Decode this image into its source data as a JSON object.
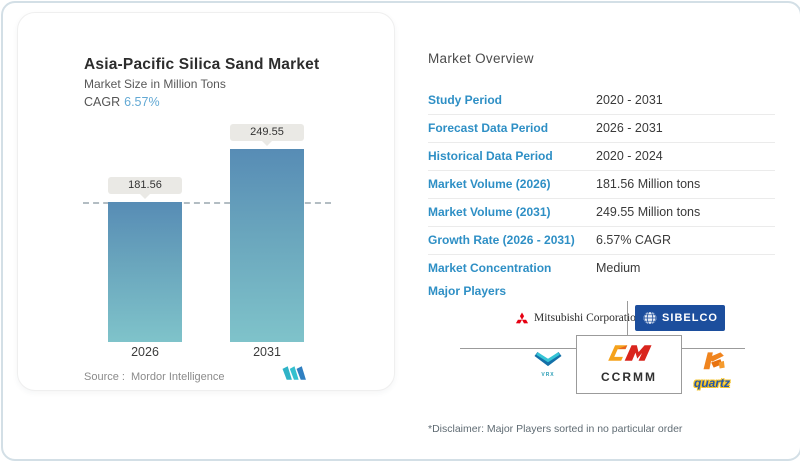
{
  "left_card": {
    "title": "Asia-Pacific Silica Sand Market",
    "subtitle": "Market Size in Million Tons",
    "cagr_label": "CAGR",
    "cagr_value": "6.57%",
    "source_label": "Source :",
    "source_value": "Mordor Intelligence"
  },
  "chart_data": {
    "type": "bar",
    "title": "Asia-Pacific Silica Sand Market",
    "subtitle": "Market Size in Million Tons",
    "cagr": "6.57%",
    "categories": [
      "2026",
      "2031"
    ],
    "values": [
      181.56,
      249.55
    ],
    "unit": "Million Tons",
    "data_labels": [
      "181.56",
      "249.55"
    ],
    "reference_line": {
      "value": 181.56,
      "style": "dashed"
    },
    "legend": "none",
    "grid": "off"
  },
  "overview": {
    "title": "Market Overview",
    "rows": [
      {
        "label": "Study Period",
        "value": "2020 - 2031"
      },
      {
        "label": "Forecast Data Period",
        "value": "2026 - 2031"
      },
      {
        "label": "Historical Data Period",
        "value": "2020 - 2024"
      },
      {
        "label": "Market Volume (2026)",
        "value": "181.56 Million tons"
      },
      {
        "label": "Market Volume (2031)",
        "value": "249.55 Million tons"
      },
      {
        "label": "Growth Rate (2026 - 2031)",
        "value": "6.57% CAGR"
      },
      {
        "label": "Market Concentration",
        "value": "Medium"
      }
    ]
  },
  "major_players": {
    "label": "Major Players",
    "players": [
      {
        "name": "Mitsubishi Corporation"
      },
      {
        "name": "SIBELCO"
      },
      {
        "name": "VRX"
      },
      {
        "name": "CCRMM"
      },
      {
        "name": "quartz"
      }
    ]
  },
  "disclaimer": "*Disclaimer: Major Players sorted in no particular order",
  "colors": {
    "accent_label_blue": "#2e8fc5",
    "cagr_blue": "#63a9d4",
    "bar_gradient_top": "#578cb5",
    "bar_gradient_bottom": "#7fc3ca",
    "dashed_line": "#9aa7b0",
    "pill_background": "#eae9e5",
    "mitsubishi_red": "#e60012",
    "sibelco_navy": "#1c4e9d",
    "ccrmm_red": "#d9251d",
    "ccrmm_orange": "#f5a21b",
    "quartz_orange": "#f0841e",
    "quartz_blue": "#2456a8",
    "mordor_teal": "#2fb3c7",
    "mordor_blue": "#2f7fc1",
    "frame_border": "#d3dfe6"
  }
}
